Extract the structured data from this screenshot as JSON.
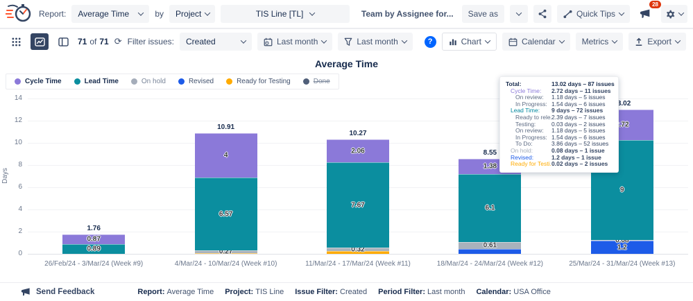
{
  "topbar": {
    "report_label": "Report:",
    "report_value": "Average Time",
    "by_label": "by",
    "group_value": "Project",
    "project_value": "TIS Line [TL]",
    "saved_report": "Team by Assignee for...",
    "save_as": "Save as",
    "quick_tips": "Quick Tips",
    "notification_count": "28"
  },
  "toolbar": {
    "count_current": "71",
    "count_of_word": "of",
    "count_total": "71",
    "filter_issues_label": "Filter issues:",
    "filter_value": "Created",
    "calendar_period": "Last month",
    "filter_period": "Last month",
    "help": "?",
    "chart_button": "Chart",
    "calendar_button": "Calendar",
    "metrics_button": "Metrics",
    "export_button": "Export"
  },
  "chart_data": {
    "type": "bar",
    "stacked": true,
    "title": "Average Time",
    "ylabel": "Days",
    "ylim": [
      0,
      14
    ],
    "yticks": [
      0,
      2,
      4,
      6,
      8,
      10,
      12,
      14
    ],
    "grid": true,
    "legend_position": "top-left",
    "categories": [
      "26/Feb/24 - 3/Mar/24 (Week #9)",
      "4/Mar/24 - 10/Mar/24 (Week #10)",
      "11/Mar/24 - 17/Mar/24 (Week #11)",
      "18/Mar/24 - 24/Mar/24 (Week #12)",
      "25/Mar/24 - 31/Mar/24 (Week #13)"
    ],
    "series": [
      {
        "name": "Ready for Testing",
        "color": "#FFAB00",
        "values": [
          0,
          0.07,
          0.22,
          0,
          0.02
        ],
        "labels": [
          "",
          "",
          "",
          "",
          ""
        ]
      },
      {
        "name": "Revised",
        "color": "#1D5BE8",
        "values": [
          0,
          0,
          0,
          0.46,
          1.2
        ],
        "labels": [
          "",
          "",
          "",
          "",
          "1.2"
        ]
      },
      {
        "name": "On hold",
        "color": "#A9B2BC",
        "values": [
          0,
          0.27,
          0.32,
          0.61,
          0.08
        ],
        "labels": [
          "",
          "0.27",
          "0.32",
          "0.61",
          "0.08"
        ]
      },
      {
        "name": "Lead Time",
        "color": "#0B8E9F",
        "values": [
          0.89,
          6.57,
          7.67,
          6.1,
          9
        ],
        "labels": [
          "0.89",
          "6.57",
          "7.67",
          "6.1",
          "9"
        ]
      },
      {
        "name": "Cycle Time",
        "color": "#8B79D9",
        "values": [
          0.87,
          4,
          2.06,
          1.38,
          2.72
        ],
        "labels": [
          "0.87",
          "4",
          "2.06",
          "1.38",
          "2.72"
        ]
      }
    ],
    "totals": [
      "1.76",
      "10.91",
      "10.27",
      "8.55",
      "13.02"
    ],
    "legend": [
      {
        "label": "Cycle Time",
        "color": "#8B79D9",
        "emphasis": "bold"
      },
      {
        "label": "Lead Time",
        "color": "#0B8E9F",
        "emphasis": "bold"
      },
      {
        "label": "On hold",
        "color": "#A5ADBA",
        "emphasis": "muted"
      },
      {
        "label": "Revised",
        "color": "#1D5BE8",
        "emphasis": "normal"
      },
      {
        "label": "Ready for Testing",
        "color": "#FFAB00",
        "emphasis": "normal"
      },
      {
        "label": "Done",
        "color": "#505F79",
        "emphasis": "struck"
      }
    ]
  },
  "tooltip": {
    "rows": [
      {
        "kind": "total",
        "label": "Total:",
        "value": "13.02 days – 87 issues"
      },
      {
        "kind": "cycle",
        "label": "Cycle Time:",
        "value": "2.72 days – 11 issues"
      },
      {
        "kind": "sub",
        "label": "On review:",
        "value": "1.18 days – 5 issues"
      },
      {
        "kind": "sub",
        "label": "In Progress:",
        "value": "1.54 days – 6 issues"
      },
      {
        "kind": "lead",
        "label": "Lead Time:",
        "value": "9 days – 72 issues"
      },
      {
        "kind": "sub",
        "label": "Ready to rele...",
        "value": "2.39 days – 7 issues"
      },
      {
        "kind": "sub",
        "label": "Testing:",
        "value": "0.03 days – 2 issues"
      },
      {
        "kind": "sub",
        "label": "On review:",
        "value": "1.18 days – 5 issues"
      },
      {
        "kind": "sub",
        "label": "In Progress:",
        "value": "1.54 days – 6 issues"
      },
      {
        "kind": "sub",
        "label": "To Do:",
        "value": "3.86 days – 52 issues"
      },
      {
        "kind": "onhold",
        "label": "On hold:",
        "value": "0.08 days – 1 issue"
      },
      {
        "kind": "revised",
        "label": "Revised:",
        "value": "1.2 days – 1 issue"
      },
      {
        "kind": "rft",
        "label": "Ready for Testi...",
        "value": "0.02 days – 2 issues"
      }
    ]
  },
  "footer": {
    "send_feedback": "Send Feedback",
    "items": [
      {
        "label": "Report:",
        "value": "Average Time"
      },
      {
        "label": "Project:",
        "value": "TIS Line"
      },
      {
        "label": "Issue Filter:",
        "value": "Created"
      },
      {
        "label": "Period Filter:",
        "value": "Last month"
      },
      {
        "label": "Calendar:",
        "value": "USA Office"
      }
    ]
  },
  "colors": {
    "accent_navy": "#344563",
    "accent_blue": "#0065FF",
    "badge_red": "#DE350B",
    "bar_purple": "#8B79D9",
    "bar_teal": "#0B8E9F",
    "bar_gray": "#A9B2BC",
    "bar_blue": "#1D5BE8",
    "bar_orange": "#FFAB00"
  }
}
